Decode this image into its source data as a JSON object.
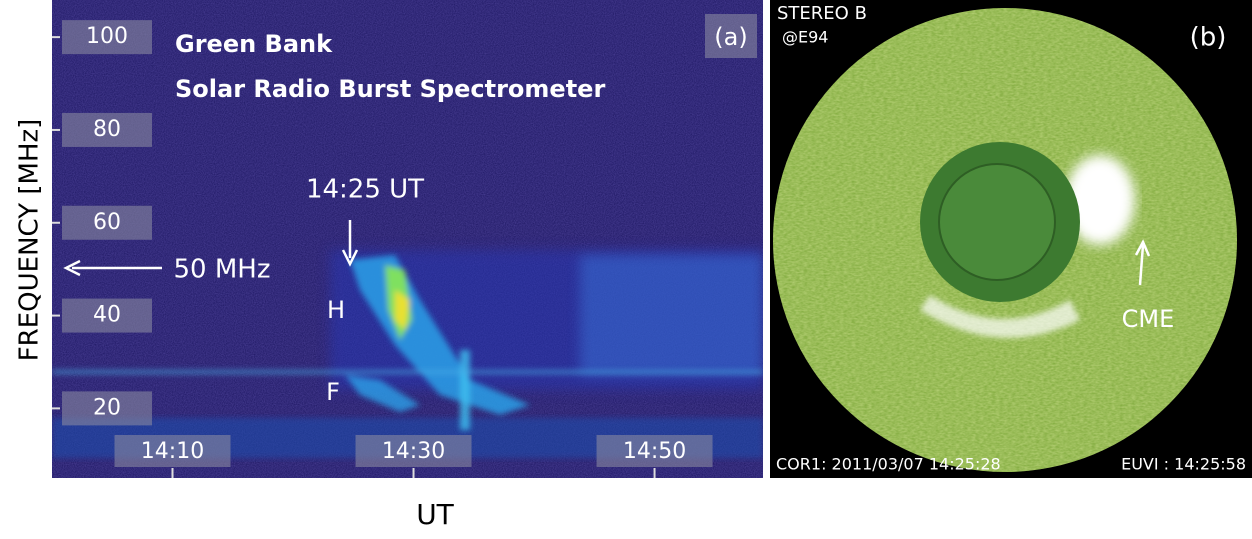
{
  "chart_data": {
    "type": "spectrogram",
    "title": "Green Bank",
    "subtitle": "Solar Radio Burst Spectrometer",
    "panel_label": "(a)",
    "ylabel": "FREQUENCY [MHz]",
    "xlabel": "UT",
    "ylim": [
      5,
      108
    ],
    "yticks": [
      20,
      40,
      60,
      80,
      100
    ],
    "xlim": [
      "14:00",
      "14:59"
    ],
    "xticks": [
      "14:10",
      "14:30",
      "14:50"
    ],
    "annotations": [
      "14:25 UT",
      "50 MHz",
      "H",
      "F"
    ]
  },
  "image_panel": {
    "observatory": "STEREO B",
    "angle": "@E94",
    "panel_label": "(b)",
    "feature": "CME",
    "cor1_time": "COR1: 2011/03/07 14:25:28",
    "euvi_time": "EUVI : 14:25:58"
  }
}
